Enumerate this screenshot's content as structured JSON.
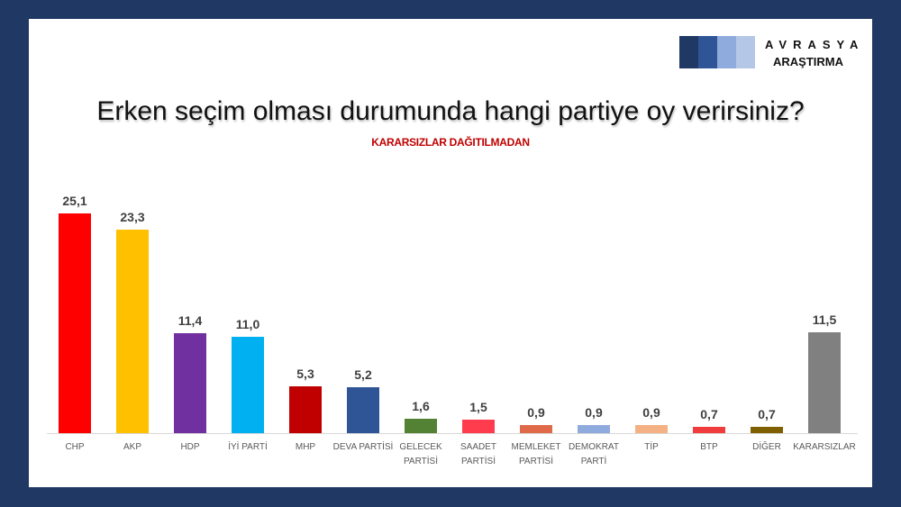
{
  "logo": {
    "name": "AVRASYA",
    "subtitle": "ARAŞTIRMA",
    "block_colors": [
      "#1f3864",
      "#2f5597",
      "#8faadc",
      "#b4c7e7"
    ]
  },
  "title": "Erken seçim olması durumunda hangi partiye oy verirsiniz?",
  "subtitle": "KARARSIZLAR DAĞITILMADAN",
  "chart_data": {
    "type": "bar",
    "title": "Erken seçim olması durumunda hangi partiye oy verirsiniz?",
    "subtitle": "KARARSIZLAR DAĞITILMADAN",
    "xlabel": "",
    "ylabel": "",
    "ylim": [
      0,
      27
    ],
    "grid": false,
    "legend": null,
    "categories": [
      "CHP",
      "AKP",
      "HDP",
      "İYİ PARTİ",
      "MHP",
      "DEVA PARTİSİ",
      "GELECEK PARTİSİ",
      "SAADET PARTİSİ",
      "MEMLEKET PARTİSİ",
      "DEMOKRAT PARTİ",
      "TİP",
      "BTP",
      "DİĞER",
      "KARARSIZLAR"
    ],
    "values": [
      25.1,
      23.3,
      11.4,
      11.0,
      5.3,
      5.2,
      1.6,
      1.5,
      0.9,
      0.9,
      0.9,
      0.7,
      0.7,
      11.5
    ],
    "bars": [
      {
        "label": "CHP",
        "value_text": "25,1",
        "value": 25.1,
        "color": "#ff0000"
      },
      {
        "label": "AKP",
        "value_text": "23,3",
        "value": 23.3,
        "color": "#ffc000"
      },
      {
        "label": "HDP",
        "value_text": "11,4",
        "value": 11.4,
        "color": "#7030a0"
      },
      {
        "label": "İYİ PARTİ",
        "value_text": "11,0",
        "value": 11.0,
        "color": "#00b0f0"
      },
      {
        "label": "MHP",
        "value_text": "5,3",
        "value": 5.3,
        "color": "#c00000"
      },
      {
        "label": "DEVA PARTİSİ",
        "value_text": "5,2",
        "value": 5.2,
        "color": "#2f5597"
      },
      {
        "label": "GELECEK\nPARTİSİ",
        "value_text": "1,6",
        "value": 1.6,
        "color": "#548235"
      },
      {
        "label": "SAADET\nPARTİSİ",
        "value_text": "1,5",
        "value": 1.5,
        "color": "#ff3b4e"
      },
      {
        "label": "MEMLEKET\nPARTİSİ",
        "value_text": "0,9",
        "value": 0.9,
        "color": "#e0694a"
      },
      {
        "label": "DEMOKRAT\nPARTİ",
        "value_text": "0,9",
        "value": 0.9,
        "color": "#8faadc"
      },
      {
        "label": "TİP",
        "value_text": "0,9",
        "value": 0.9,
        "color": "#f4b183"
      },
      {
        "label": "BTP",
        "value_text": "0,7",
        "value": 0.7,
        "color": "#f03c3c"
      },
      {
        "label": "DİĞER",
        "value_text": "0,7",
        "value": 0.7,
        "color": "#7f6000"
      },
      {
        "label": "KARARSIZLAR",
        "value_text": "11,5",
        "value": 11.5,
        "color": "#808080"
      }
    ]
  }
}
